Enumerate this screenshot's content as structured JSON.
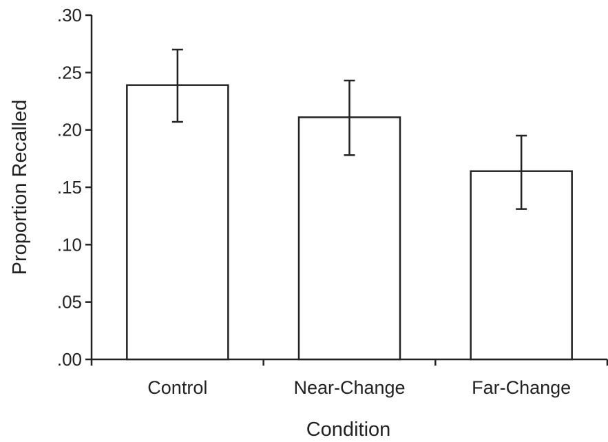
{
  "chart_data": {
    "type": "bar",
    "title": "",
    "xlabel": "Condition",
    "ylabel": "Proportion Recalled",
    "categories": [
      "Control",
      "Near-Change",
      "Far-Change"
    ],
    "values": [
      0.239,
      0.211,
      0.164
    ],
    "error_bars": [
      {
        "low": 0.207,
        "high": 0.27
      },
      {
        "low": 0.178,
        "high": 0.243
      },
      {
        "low": 0.131,
        "high": 0.195
      }
    ],
    "ylim": [
      0,
      0.3
    ],
    "yticks": [
      0,
      0.05,
      0.1,
      0.15,
      0.2,
      0.25,
      0.3
    ],
    "ytick_labels": [
      ".00",
      ".05",
      ".10",
      ".15",
      ".20",
      ".25",
      ".30"
    ],
    "grid": false,
    "legend": "none",
    "colors": {
      "bar_fill": "#ffffff",
      "bar_stroke": "#222222",
      "axis": "#222222"
    }
  }
}
